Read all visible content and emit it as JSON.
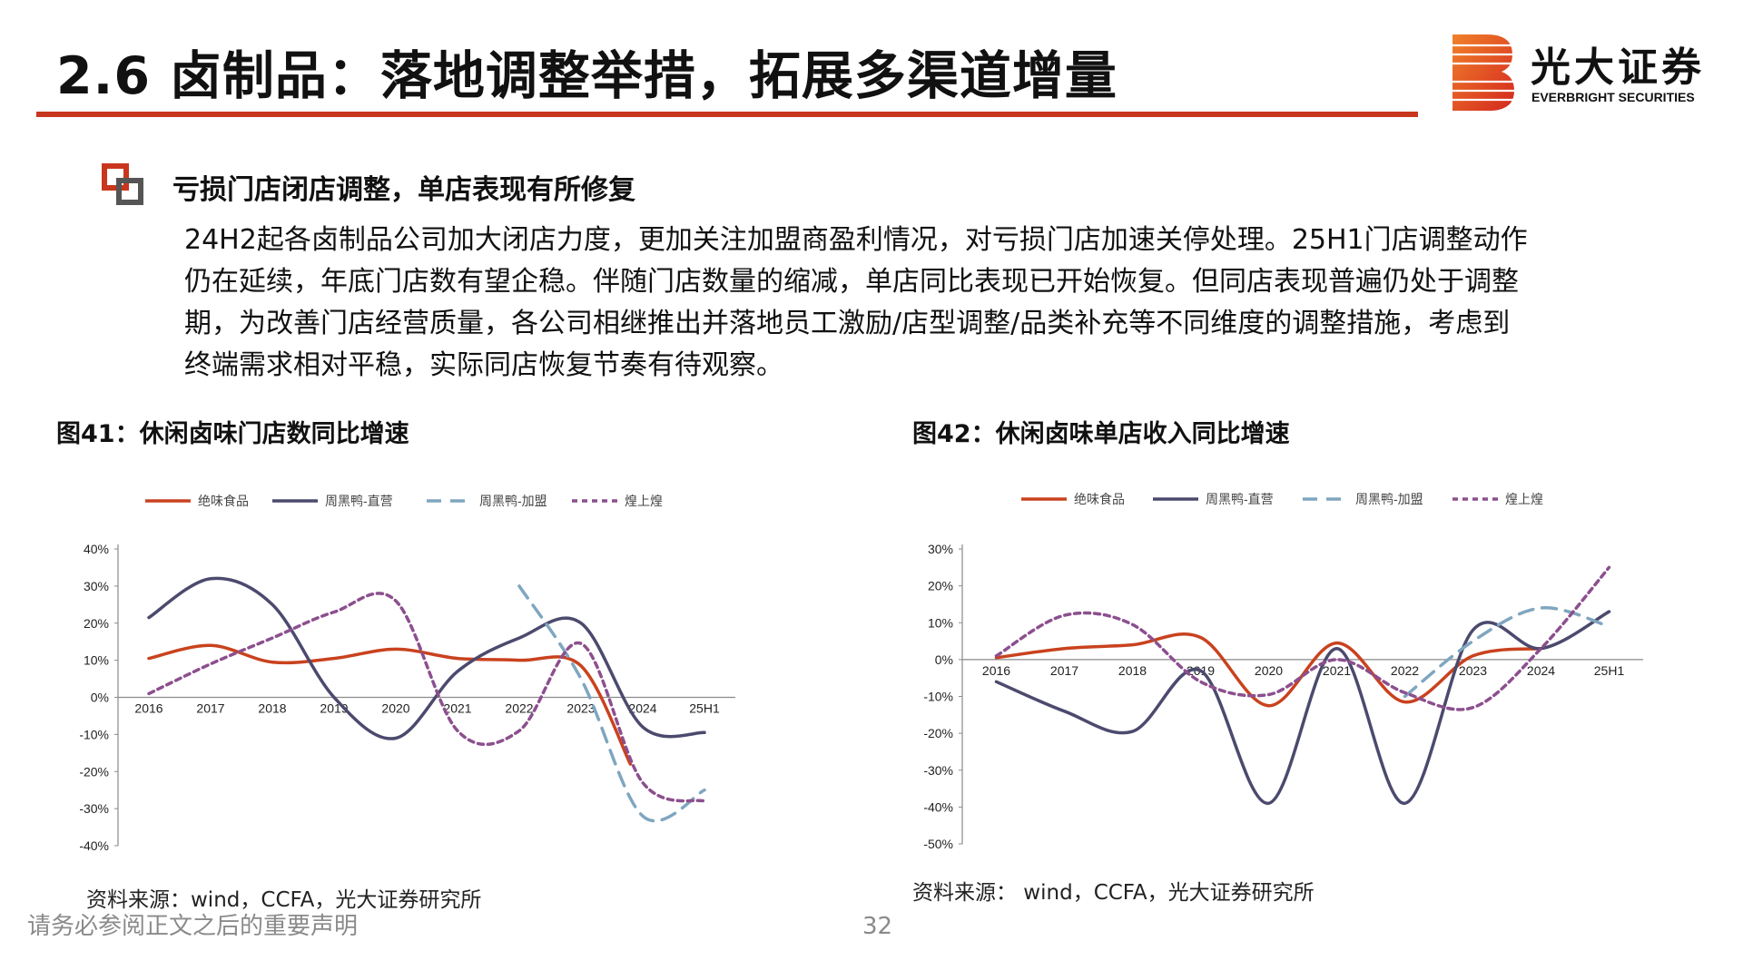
{
  "header": {
    "title": "2.6 卤制品：落地调整举措，拓展多渠道增量",
    "logo_cn": "光大证券",
    "logo_en": "EVERBRIGHT SECURITIES"
  },
  "section": {
    "heading": "亏损门店闭店调整，单店表现有所修复",
    "paragraph_lines": [
      "24H2起各卤制品公司加大闭店力度，更加关注加盟商盈利情况，对亏损门店加速关停处理。25H1门店调整动作",
      "仍在延续，年底门店数有望企稳。伴随门店数量的缩减，单店同比表现已开始恢复。但同店表现普遍仍处于调整",
      "期，为改善门店经营质量，各公司相继推出并落地员工激励/店型调整/品类补充等不同维度的调整措施，考虑到",
      "终端需求相对平稳，实际同店恢复节奏有待观察。"
    ]
  },
  "figures": [
    {
      "title": "图41：休闲卤味门店数同比增速",
      "source": "资料来源：wind，CCFA，光大证券研究所"
    },
    {
      "title": "图42：休闲卤味单店收入同比增速",
      "source": "资料来源： wind，CCFA，光大证券研究所"
    }
  ],
  "colors": {
    "accent": "#c8361e",
    "s1": "#c9421e",
    "s2": "#4b4a6e",
    "s3": "#7fa6c0",
    "s4": "#8c4f8e"
  },
  "chart_data": [
    {
      "type": "line",
      "categories": [
        "2016",
        "2017",
        "2018",
        "2019",
        "2020",
        "2021",
        "2022",
        "2023",
        "2024",
        "25H1"
      ],
      "ylim": [
        -0.4,
        0.4
      ],
      "yticks": [
        "40%",
        "30%",
        "20%",
        "10%",
        "0%",
        "-10%",
        "-20%",
        "-30%",
        "-40%"
      ],
      "legend_position": "top",
      "grid": false,
      "series": [
        {
          "name": "绝味食品",
          "color": "#c9421e",
          "dash": "",
          "x": [
            0,
            1,
            2,
            3,
            4,
            5,
            6,
            7,
            7.8
          ],
          "values": [
            0.105,
            0.14,
            0.095,
            0.105,
            0.13,
            0.105,
            0.1,
            0.085,
            -0.18
          ]
        },
        {
          "name": "周黑鸭-直营",
          "color": "#4b4a6e",
          "dash": "",
          "x": [
            0,
            1,
            2,
            3,
            4,
            5,
            6,
            7,
            8,
            9
          ],
          "values": [
            0.215,
            0.32,
            0.25,
            0.0,
            -0.11,
            0.07,
            0.16,
            0.2,
            -0.08,
            -0.095
          ]
        },
        {
          "name": "周黑鸭-加盟",
          "color": "#7fa6c0",
          "dash": "16 10",
          "x": [
            6,
            7,
            8,
            9
          ],
          "values": [
            0.3,
            0.05,
            -0.32,
            -0.25
          ]
        },
        {
          "name": "煌上煌",
          "color": "#8c4f8e",
          "dash": "6 5",
          "x": [
            0,
            1,
            2,
            3,
            4,
            5,
            6,
            7,
            8,
            9
          ],
          "values": [
            0.01,
            0.09,
            0.16,
            0.23,
            0.26,
            -0.09,
            -0.09,
            0.145,
            -0.23,
            -0.28
          ]
        }
      ]
    },
    {
      "type": "line",
      "categories": [
        "2016",
        "2017",
        "2018",
        "2019",
        "2020",
        "2021",
        "2022",
        "2023",
        "2024",
        "25H1"
      ],
      "ylim": [
        -0.5,
        0.3
      ],
      "yticks": [
        "30%",
        "20%",
        "10%",
        "0%",
        "-10%",
        "-20%",
        "-30%",
        "-40%",
        "-50%"
      ],
      "legend_position": "top",
      "grid": false,
      "series": [
        {
          "name": "绝味食品",
          "color": "#c9421e",
          "dash": "",
          "x": [
            0,
            1,
            2,
            3,
            4,
            5,
            6,
            7,
            8
          ],
          "values": [
            0.005,
            0.03,
            0.04,
            0.06,
            -0.125,
            0.045,
            -0.115,
            0.01,
            0.03
          ]
        },
        {
          "name": "周黑鸭-直营",
          "color": "#4b4a6e",
          "dash": "",
          "x": [
            0,
            1,
            2,
            3,
            4,
            5,
            6,
            7,
            8,
            9
          ],
          "values": [
            -0.06,
            -0.14,
            -0.195,
            -0.03,
            -0.39,
            0.03,
            -0.39,
            0.08,
            0.03,
            0.13
          ]
        },
        {
          "name": "周黑鸭-加盟",
          "color": "#7fa6c0",
          "dash": "16 10",
          "x": [
            6,
            7,
            8,
            9
          ],
          "values": [
            -0.1,
            0.05,
            0.14,
            0.09
          ]
        },
        {
          "name": "煌上煌",
          "color": "#8c4f8e",
          "dash": "6 5",
          "x": [
            0,
            1,
            2,
            3,
            4,
            5,
            6,
            7,
            8,
            9
          ],
          "values": [
            0.01,
            0.12,
            0.095,
            -0.06,
            -0.095,
            0.0,
            -0.09,
            -0.13,
            0.03,
            0.25
          ]
        }
      ]
    }
  ]
}
